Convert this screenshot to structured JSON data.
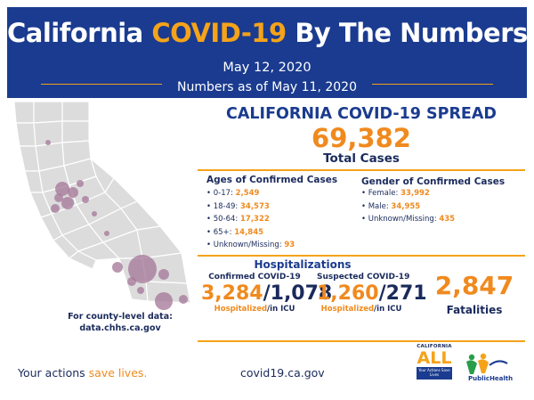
{
  "banner": {
    "title_part1": "California ",
    "title_part2": "COVID-19",
    "title_part3": " By The Numbers",
    "date": "May 12, 2020",
    "as_of": "Numbers as of May 11, 2020"
  },
  "spread": {
    "title": "CALIFORNIA COVID-19 SPREAD",
    "total": "69,382",
    "total_label": "Total Cases"
  },
  "ages": {
    "title": "Ages of Confirmed Cases",
    "items": [
      {
        "label": "0-17: ",
        "value": "2,549"
      },
      {
        "label": "18-49: ",
        "value": "34,573"
      },
      {
        "label": "50-64: ",
        "value": "17,322"
      },
      {
        "label": "65+: ",
        "value": "14,845"
      },
      {
        "label": "Unknown/Missing: ",
        "value": "93"
      }
    ]
  },
  "gender": {
    "title": "Gender of Confirmed Cases",
    "items": [
      {
        "label": "Female: ",
        "value": "33,992"
      },
      {
        "label": "Male: ",
        "value": "34,955"
      },
      {
        "label": "Unknown/Missing: ",
        "value": "435"
      }
    ]
  },
  "hospitalizations": {
    "title": "Hospitalizations",
    "confirmed": {
      "label": "Confirmed COVID-19",
      "hospitalized": "3,284",
      "separator": "/",
      "icu": "1,078",
      "sub_hospitalized": "Hospitalized",
      "sub_icu": "/in ICU"
    },
    "suspected": {
      "label": "Suspected COVID-19",
      "hospitalized": "1,260",
      "separator": "/",
      "icu": "271",
      "sub_hospitalized": "Hospitalized",
      "sub_icu": "/in ICU"
    }
  },
  "fatalities": {
    "value": "2,847",
    "label": "Fatalities"
  },
  "county_note": {
    "line1": "For county-level data:",
    "line2": "data.chhs.ca.gov"
  },
  "footer": {
    "slogan_part1": "Your actions ",
    "slogan_part2": "save lives.",
    "website": "covid19.ca.gov"
  },
  "logos": {
    "ca_all_top": "CALIFORNIA",
    "ca_all_big": "ALL",
    "ca_all_box": "Your Actions Save Lives",
    "cdph_text": "PublicHealth"
  },
  "colors": {
    "banner": "#1a3b8f",
    "accent_orange": "#f08a1e",
    "rule_orange": "#f5a31a",
    "navy_text": "#1a2a5c",
    "county_fill": "#dcdcdc",
    "bubble": "#a77a9a"
  }
}
